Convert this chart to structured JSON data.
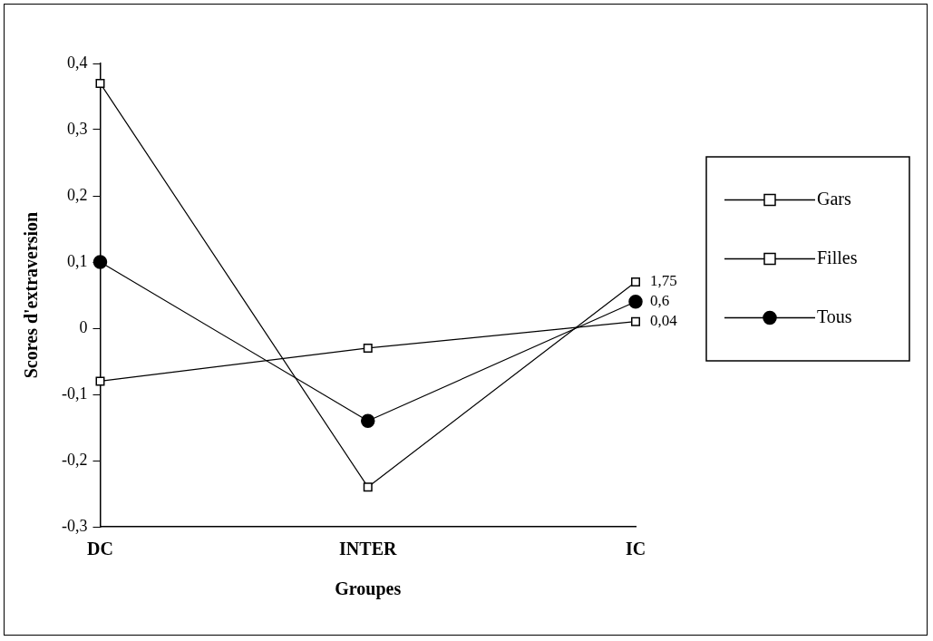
{
  "chart_data": {
    "type": "line",
    "xlabel": "Groupes",
    "ylabel": "Scores d'extraversion",
    "categories": [
      "DC",
      "INTER",
      "IC"
    ],
    "series": [
      {
        "name": "Gars",
        "color": "#000000",
        "values": [
          -0.08,
          -0.03,
          0.01
        ],
        "marker": "square"
      },
      {
        "name": "Filles",
        "color": "#000000",
        "values": [
          0.37,
          -0.24,
          0.07
        ],
        "marker": "square"
      },
      {
        "name": "Tous",
        "color": "#000000",
        "values": [
          0.1,
          -0.14,
          0.04
        ],
        "marker": "circle"
      }
    ],
    "ylim": [
      -0.3,
      0.4
    ],
    "yticks": [
      {
        "value": -0.3,
        "label": "-0,3"
      },
      {
        "value": -0.2,
        "label": "-0,2"
      },
      {
        "value": -0.1,
        "label": "-0,1"
      },
      0,
      {
        "value": 0.1,
        "label": "0,1"
      },
      {
        "value": 0.2,
        "label": "0,2"
      },
      {
        "value": 0.3,
        "label": "0,3"
      },
      {
        "value": 0.4,
        "label": "0,4"
      }
    ],
    "annotations": [
      {
        "text": "1,75",
        "x": "IC",
        "y": 0.07
      },
      {
        "text": "0,6",
        "x": "IC",
        "y": 0.04
      },
      {
        "text": "0,04",
        "x": "IC",
        "y": 0.01
      }
    ],
    "grid": false,
    "legend": "right",
    "line_style": "solid"
  }
}
